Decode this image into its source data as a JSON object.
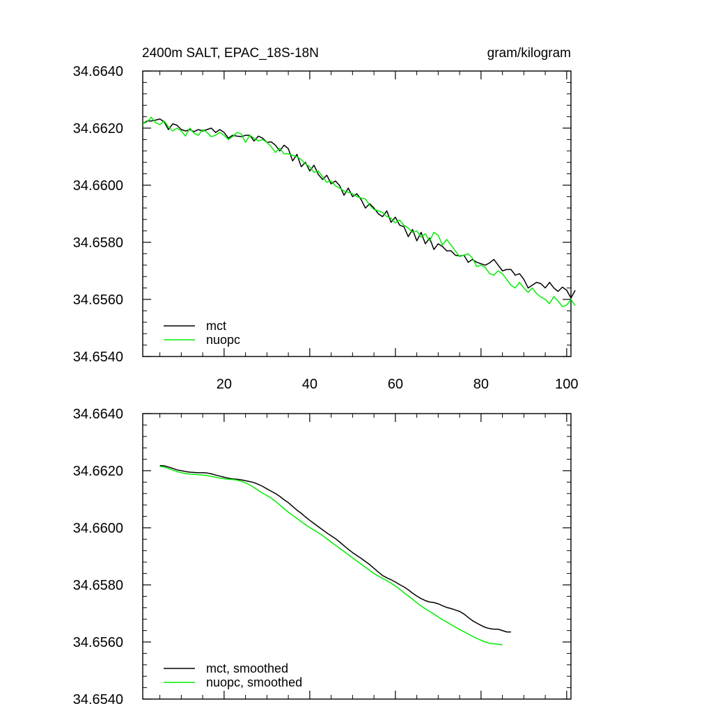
{
  "chart_data": [
    {
      "type": "line",
      "title": "2400m SALT, EPAC_18S-18N",
      "units": "gram/kilogram",
      "xlim": [
        1,
        101
      ],
      "ylim": [
        34.654,
        34.664
      ],
      "xticks": [
        20,
        40,
        60,
        80,
        100
      ],
      "xtick_labels": [
        "20",
        "40",
        "60",
        "80",
        "100"
      ],
      "yticks": [
        34.654,
        34.656,
        34.658,
        34.66,
        34.662,
        34.664
      ],
      "ytick_labels": [
        "34.6540",
        "34.6560",
        "34.6580",
        "34.6600",
        "34.6620",
        "34.6640"
      ],
      "legend_position": "bottom-left",
      "series": [
        {
          "name": "mct",
          "color": "#000000",
          "x_start": 1,
          "values": [
            34.66215,
            34.66225,
            34.66225,
            34.66228,
            34.66232,
            34.66222,
            34.66195,
            34.66215,
            34.6621,
            34.66195,
            34.6619,
            34.66195,
            34.66188,
            34.66195,
            34.6619,
            34.66195,
            34.662,
            34.66185,
            34.66195,
            34.66185,
            34.66165,
            34.66175,
            34.66172,
            34.6617,
            34.66175,
            34.66175,
            34.66155,
            34.66172,
            34.66165,
            34.6615,
            34.66152,
            34.6614,
            34.6612,
            34.6614,
            34.66128,
            34.66085,
            34.66108,
            34.66065,
            34.6608,
            34.6605,
            34.6607,
            34.66038,
            34.6602,
            34.66035,
            34.66005,
            34.66015,
            34.65998,
            34.65965,
            34.6599,
            34.6596,
            34.6597,
            34.6595,
            34.6592,
            34.65935,
            34.6592,
            34.659,
            34.6589,
            34.6591,
            34.6587,
            34.65888,
            34.6586,
            34.65855,
            34.6582,
            34.65845,
            34.65805,
            34.65835,
            34.65795,
            34.65815,
            34.65775,
            34.65795,
            34.65785,
            34.6577,
            34.6577,
            34.65755,
            34.65752,
            34.65755,
            34.6573,
            34.6574,
            34.6573,
            34.65725,
            34.6572,
            34.65728,
            34.6574,
            34.6572,
            34.657,
            34.65705,
            34.65705,
            34.65685,
            34.6569,
            34.6567,
            34.6564,
            34.6565,
            34.6566,
            34.65655,
            34.6564,
            34.6566,
            34.6564,
            34.65628,
            34.65643,
            34.65632,
            34.65605,
            34.65632
          ]
        },
        {
          "name": "nuopc",
          "color": "#00ee00",
          "x_start": 1,
          "values": [
            34.66215,
            34.66222,
            34.66238,
            34.6622,
            34.66212,
            34.66225,
            34.66205,
            34.6619,
            34.662,
            34.6619,
            34.66172,
            34.662,
            34.66182,
            34.66175,
            34.66195,
            34.66185,
            34.6617,
            34.66175,
            34.66185,
            34.66175,
            34.6616,
            34.6617,
            34.66185,
            34.6618,
            34.6615,
            34.66175,
            34.66165,
            34.66155,
            34.6616,
            34.6615,
            34.66135,
            34.66115,
            34.6613,
            34.6611,
            34.6611,
            34.66105,
            34.661,
            34.6609,
            34.66075,
            34.66065,
            34.66045,
            34.6605,
            34.6603,
            34.6601,
            34.66015,
            34.65998,
            34.6599,
            34.6598,
            34.65975,
            34.6597,
            34.6596,
            34.65955,
            34.65952,
            34.6593,
            34.65915,
            34.6591,
            34.65905,
            34.6589,
            34.65885,
            34.65868,
            34.65878,
            34.6586,
            34.6585,
            34.65835,
            34.6584,
            34.65818,
            34.6583,
            34.65805,
            34.65835,
            34.65825,
            34.6579,
            34.6581,
            34.6579,
            34.6577,
            34.6575,
            34.65755,
            34.6576,
            34.65745,
            34.65715,
            34.6572,
            34.65712,
            34.6569,
            34.65685,
            34.657,
            34.6569,
            34.6567,
            34.6565,
            34.6564,
            34.6566,
            34.6564,
            34.65625,
            34.6564,
            34.6562,
            34.65608,
            34.656,
            34.65585,
            34.6561,
            34.65595,
            34.65575,
            34.6558,
            34.656,
            34.65578
          ]
        }
      ]
    },
    {
      "type": "line",
      "xlim": [
        1,
        101
      ],
      "ylim": [
        34.654,
        34.664
      ],
      "xticks": [
        20,
        40,
        60,
        80,
        100
      ],
      "yticks": [
        34.654,
        34.656,
        34.658,
        34.66,
        34.662,
        34.664
      ],
      "ytick_labels": [
        "34.6540",
        "34.6560",
        "34.6580",
        "34.6600",
        "34.6620",
        "34.6640"
      ],
      "legend_position": "bottom-left",
      "series": [
        {
          "name": "mct, smoothed",
          "color": "#000000",
          "x_start": 5,
          "values": [
            34.66218,
            34.66217,
            34.66213,
            34.66208,
            34.66203,
            34.662,
            34.66197,
            34.66195,
            34.66194,
            34.66193,
            34.66193,
            34.66192,
            34.66189,
            34.66185,
            34.66181,
            34.66177,
            34.66174,
            34.66171,
            34.6617,
            34.66168,
            34.66165,
            34.66162,
            34.66158,
            34.66152,
            34.66145,
            34.66136,
            34.66128,
            34.6612,
            34.6611,
            34.66098,
            34.66088,
            34.66075,
            34.66062,
            34.66051,
            34.66038,
            34.66026,
            34.66015,
            34.66004,
            34.65993,
            34.65982,
            34.65972,
            34.65962,
            34.6595,
            34.65937,
            34.65925,
            34.65913,
            34.65903,
            34.65893,
            34.65882,
            34.65871,
            34.65858,
            34.65845,
            34.65833,
            34.65825,
            34.65818,
            34.6581,
            34.65801,
            34.65793,
            34.65783,
            34.65771,
            34.65761,
            34.65752,
            34.65745,
            34.6574,
            34.65738,
            34.65734,
            34.65727,
            34.65721,
            34.65717,
            34.65712,
            34.65707,
            34.65698,
            34.65686,
            34.65675,
            34.65666,
            34.65658,
            34.65651,
            34.65647,
            34.65645,
            34.65645,
            34.6564,
            34.65635,
            34.65635
          ]
        },
        {
          "name": "nuopc, smoothed",
          "color": "#00ee00",
          "x_start": 5,
          "values": [
            34.66215,
            34.66213,
            34.66208,
            34.66202,
            34.66197,
            34.66193,
            34.6619,
            34.66188,
            34.66187,
            34.66186,
            34.66185,
            34.66183,
            34.6618,
            34.66177,
            34.66174,
            34.66172,
            34.6617,
            34.66169,
            34.66167,
            34.66163,
            34.66157,
            34.6615,
            34.66141,
            34.66131,
            34.66121,
            34.66113,
            34.66104,
            34.66093,
            34.6608,
            34.66067,
            34.66055,
            34.66044,
            34.66033,
            34.66022,
            34.66011,
            34.66001,
            34.65992,
            34.65983,
            34.65973,
            34.65962,
            34.6595,
            34.65939,
            34.65928,
            34.65917,
            34.65906,
            34.65895,
            34.65884,
            34.65873,
            34.65862,
            34.65851,
            34.6584,
            34.65831,
            34.65823,
            34.65815,
            34.65806,
            34.65796,
            34.65785,
            34.65773,
            34.65762,
            34.6575,
            34.65738,
            34.65726,
            34.65716,
            34.65707,
            34.65698,
            34.65688,
            34.65678,
            34.6567,
            34.65661,
            34.65652,
            34.65644,
            34.65636,
            34.65628,
            34.6562,
            34.65613,
            34.65606,
            34.656,
            34.65595,
            34.65594,
            34.65592,
            34.6559
          ]
        }
      ]
    }
  ]
}
